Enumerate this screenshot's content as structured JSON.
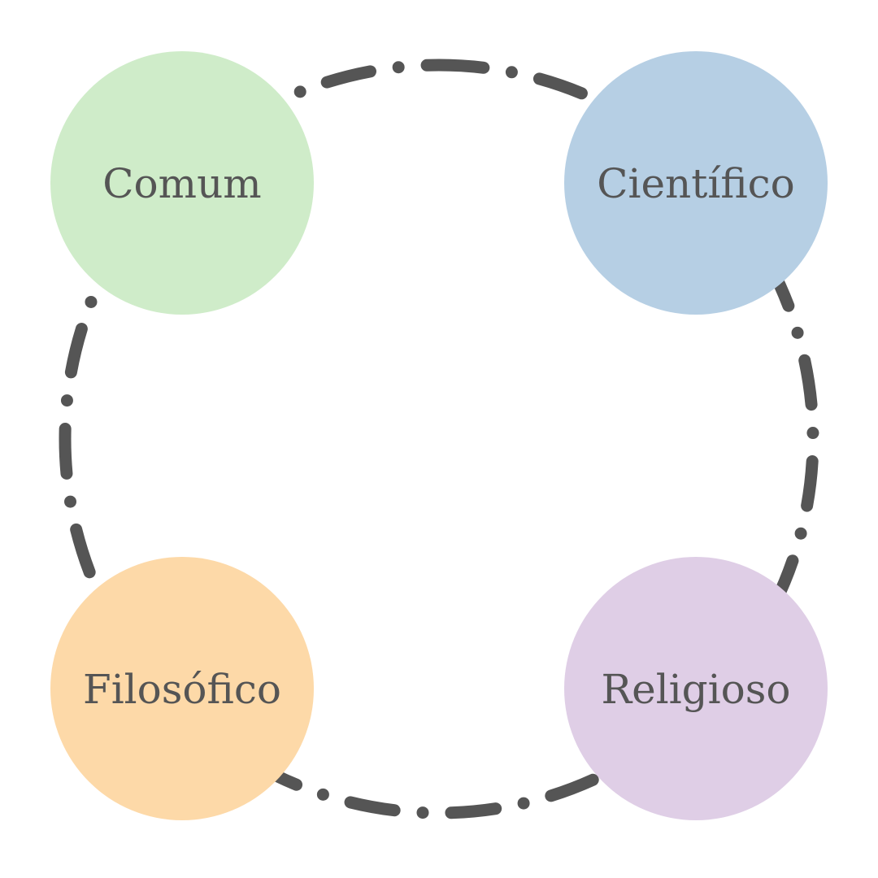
{
  "nodes": [
    {
      "id": "comum",
      "label": "Comum",
      "color": "#cfecc9"
    },
    {
      "id": "cientifico",
      "label": "Científico",
      "color": "#b6cfe4"
    },
    {
      "id": "filosofico",
      "label": "Filosófico",
      "color": "#fdd9a8"
    },
    {
      "id": "religioso",
      "label": "Religioso",
      "color": "#dfcee6"
    }
  ],
  "connector": {
    "style": "dash-dot",
    "color": "#555555"
  }
}
